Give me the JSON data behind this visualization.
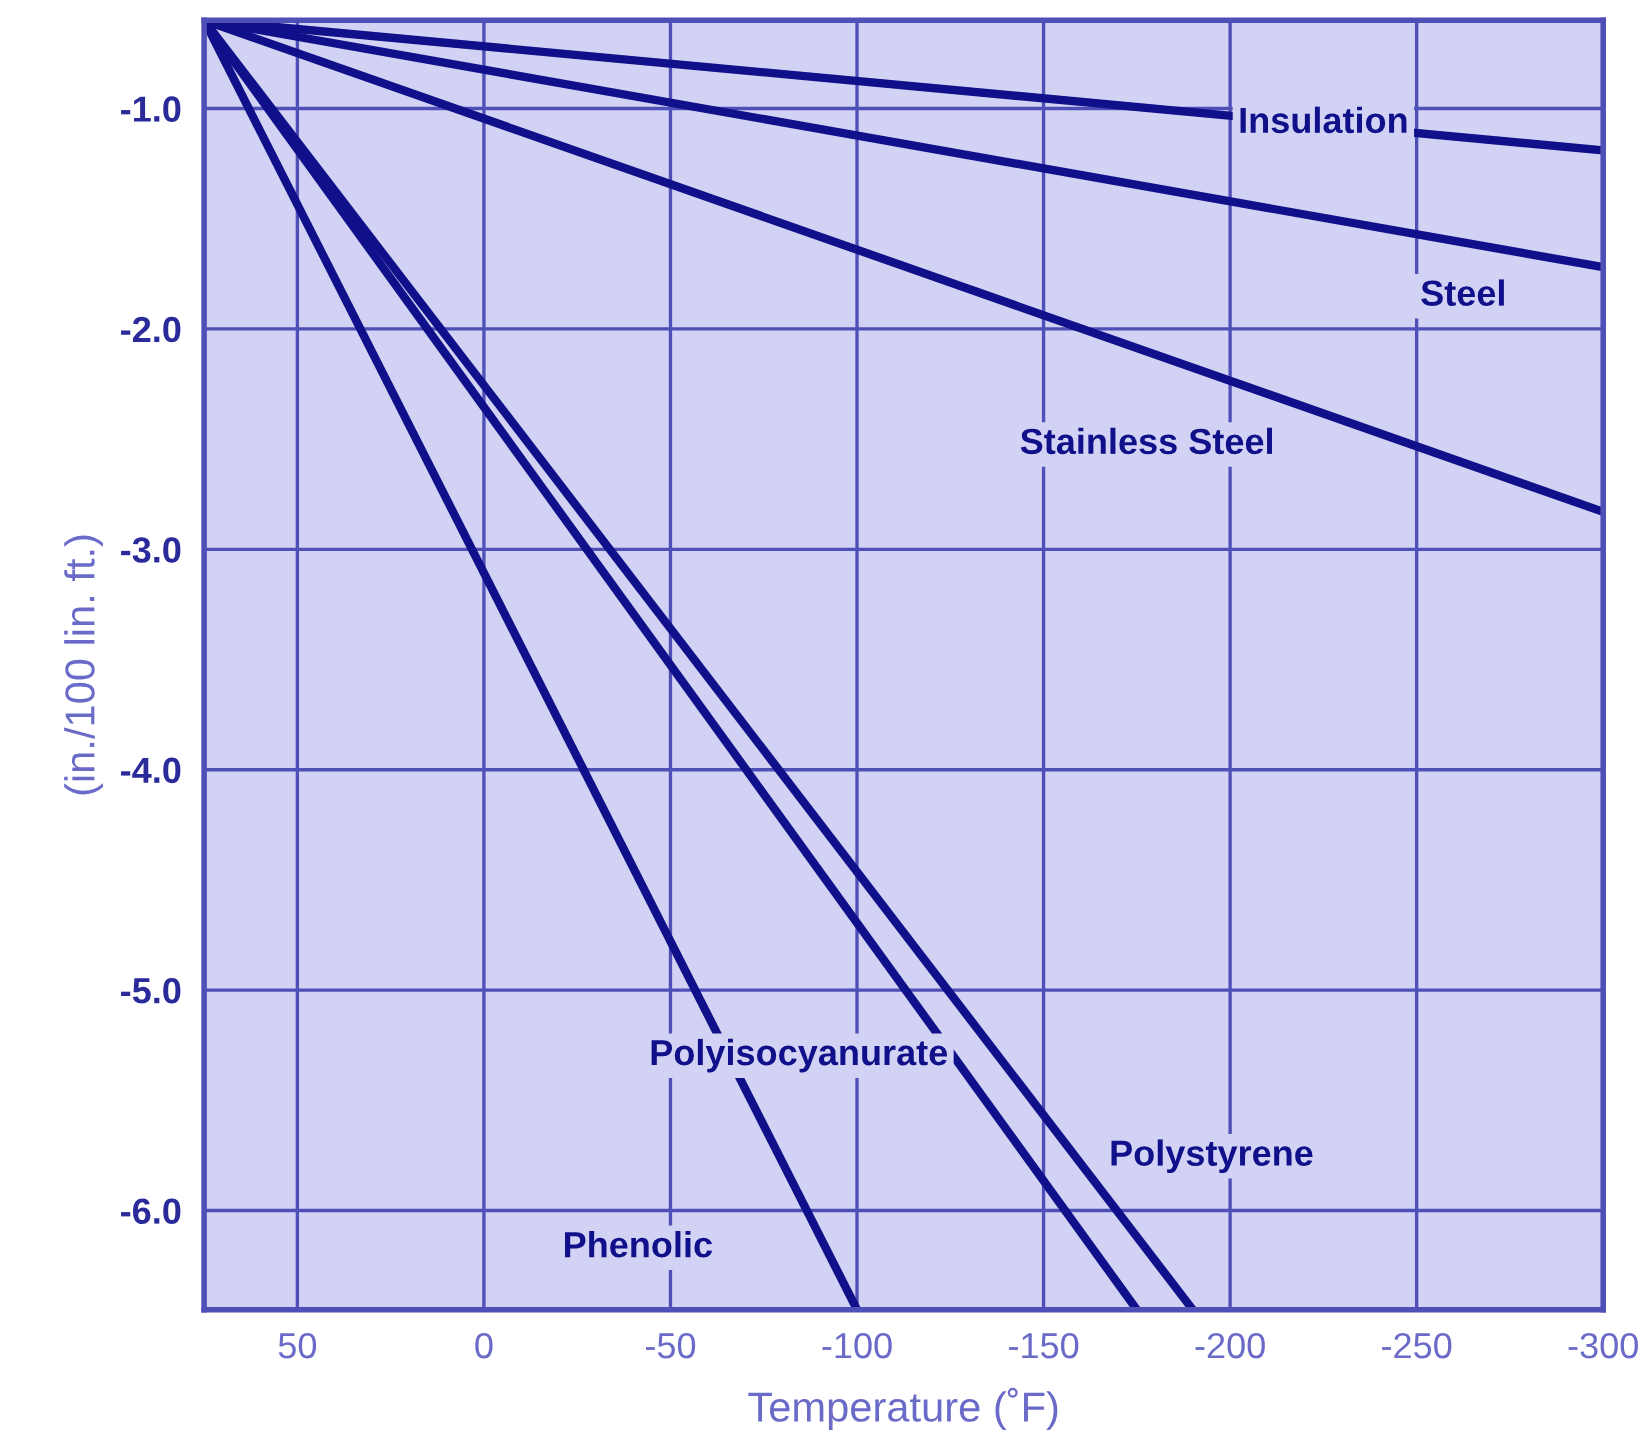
{
  "chart_data": {
    "type": "line",
    "xlabel": "Temperature (˚F)",
    "ylabel": "(in./100 lin. ft.)",
    "xlim": [
      75,
      -300
    ],
    "ylim": [
      -6.45,
      -0.6
    ],
    "xticks": [
      50,
      0,
      -50,
      -100,
      -150,
      -200,
      -250,
      -300
    ],
    "yticks": [
      {
        "value": -1.0,
        "label": "-1.0"
      },
      {
        "value": -2.0,
        "label": "-2.0"
      },
      {
        "value": -3.0,
        "label": "-3.0"
      },
      {
        "value": -4.0,
        "label": "-4.0"
      },
      {
        "value": -5.0,
        "label": "-5.0"
      },
      {
        "value": -6.0,
        "label": "-6.0"
      }
    ],
    "grid": true,
    "legend": false,
    "marker": "none",
    "line_style": "solid",
    "series": [
      {
        "name": "Insulation",
        "color": "#10108a",
        "x": [
          75,
          -300
        ],
        "values": [
          -0.6,
          -1.19
        ]
      },
      {
        "name": "Steel",
        "color": "#10108a",
        "x": [
          75,
          -300
        ],
        "values": [
          -0.6,
          -1.72
        ]
      },
      {
        "name": "Stainless Steel",
        "color": "#10108a",
        "x": [
          75,
          -300
        ],
        "values": [
          -0.6,
          -2.83
        ]
      },
      {
        "name": "Polyisocyanurate",
        "color": "#10108a",
        "x": [
          75,
          -175
        ],
        "values": [
          -0.6,
          -6.45
        ]
      },
      {
        "name": "Polystyrene",
        "color": "#10108a",
        "x": [
          75,
          -190
        ],
        "values": [
          -0.6,
          -6.45
        ]
      },
      {
        "name": "Phenolic",
        "color": "#10108a",
        "x": [
          75,
          -100
        ],
        "values": [
          -0.6,
          -6.45
        ]
      }
    ]
  }
}
